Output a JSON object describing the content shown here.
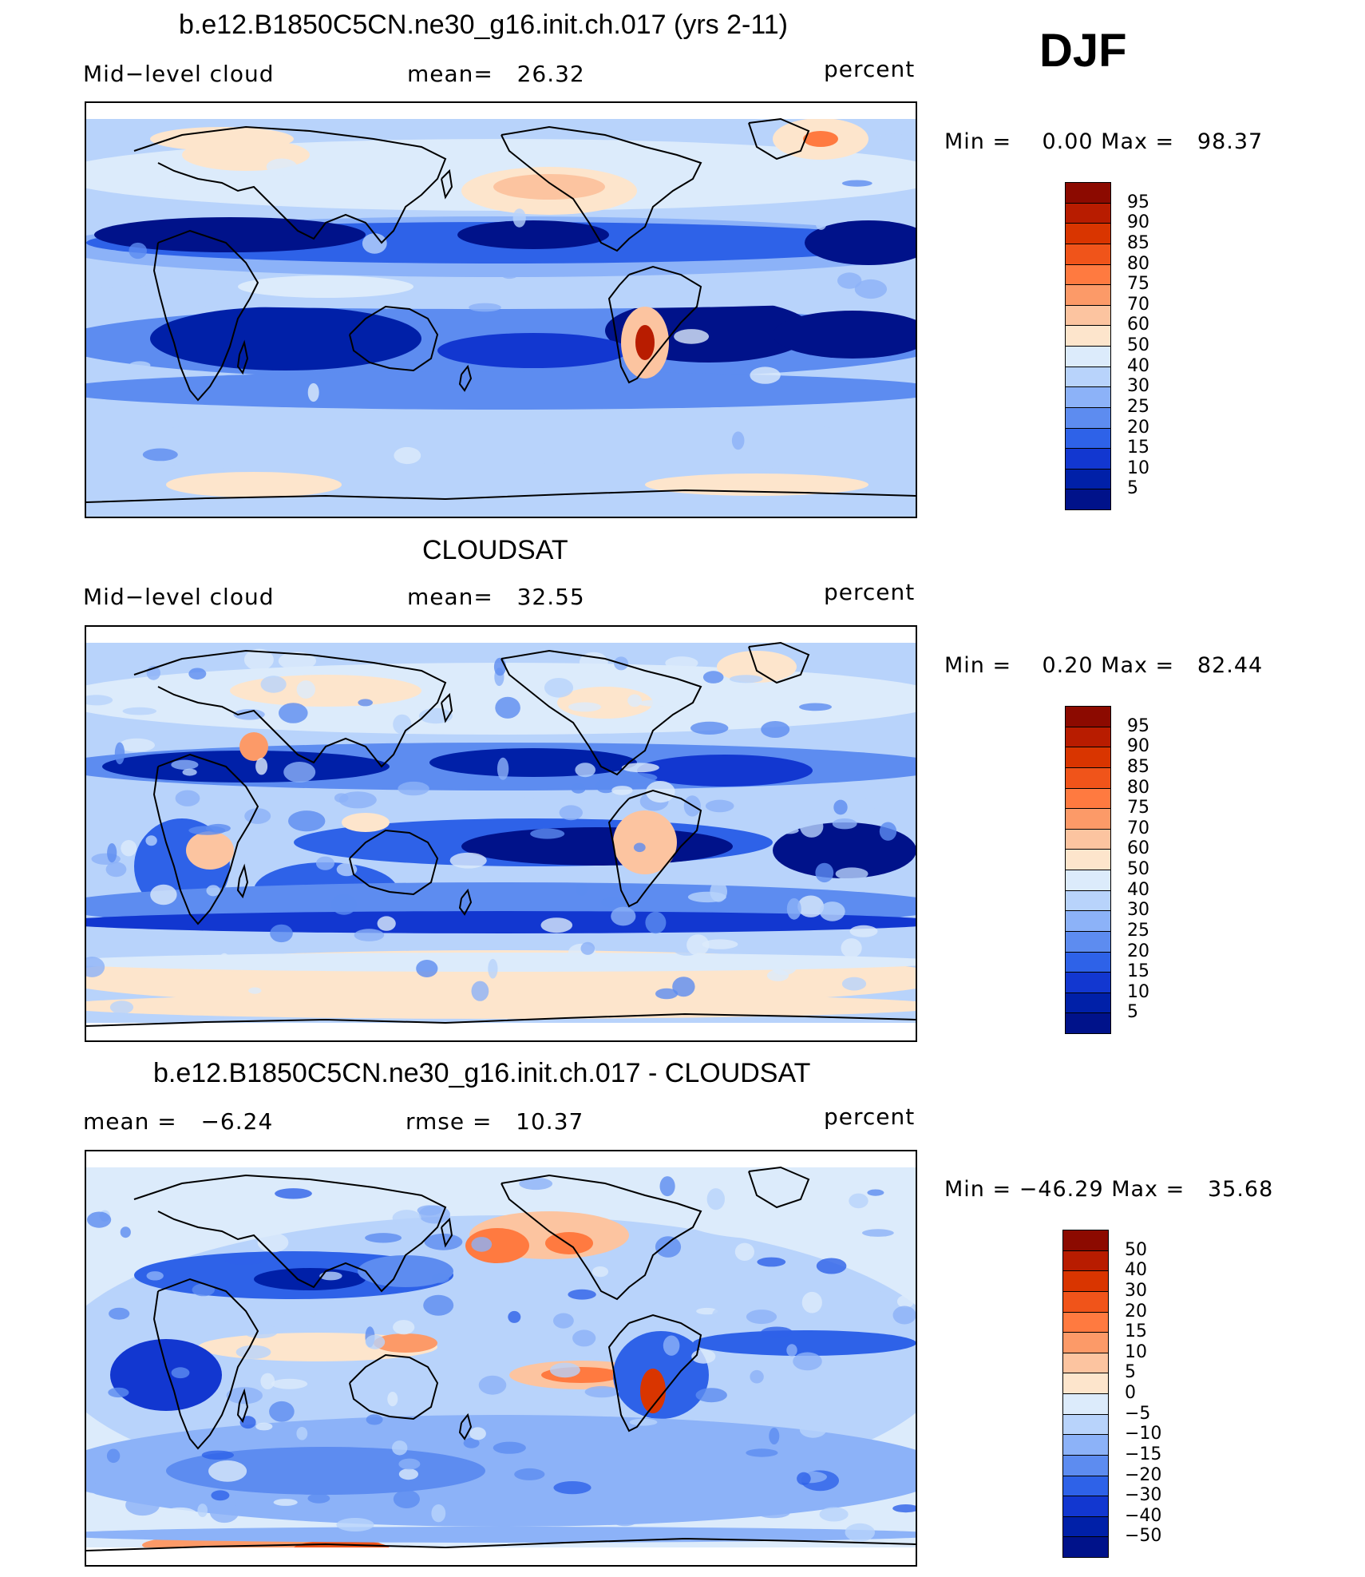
{
  "season": "DJF",
  "panels": [
    {
      "title": "b.e12.B1850C5CN.ne30_g16.init.ch.017 (yrs 2-11)",
      "left_label": "Mid−level cloud",
      "center_label": "mean=   26.32",
      "right_label": "percent",
      "minmax": "Min =    0.00 Max =   98.37",
      "colorbar_labels": [
        "95",
        "90",
        "85",
        "80",
        "75",
        "70",
        "60",
        "50",
        "40",
        "30",
        "25",
        "20",
        "15",
        "10",
        "5"
      ],
      "colorbar_colors": [
        "#8c0a00",
        "#b81c00",
        "#d93500",
        "#f0541a",
        "#ff7a40",
        "#fc9a68",
        "#fcc4a0",
        "#fde5cc",
        "#dcebfb",
        "#b8d3fb",
        "#8cb2f8",
        "#5d8cf0",
        "#2e62e8",
        "#1237d0",
        "#0020a8",
        "#00128a"
      ]
    },
    {
      "title": "CLOUDSAT",
      "left_label": "Mid−level cloud",
      "center_label": "mean=   32.55",
      "right_label": "percent",
      "minmax": "Min =    0.20 Max =   82.44",
      "colorbar_labels": [
        "95",
        "90",
        "85",
        "80",
        "75",
        "70",
        "60",
        "50",
        "40",
        "30",
        "25",
        "20",
        "15",
        "10",
        "5"
      ],
      "colorbar_colors": [
        "#8c0a00",
        "#b81c00",
        "#d93500",
        "#f0541a",
        "#ff7a40",
        "#fc9a68",
        "#fcc4a0",
        "#fde5cc",
        "#dcebfb",
        "#b8d3fb",
        "#8cb2f8",
        "#5d8cf0",
        "#2e62e8",
        "#1237d0",
        "#0020a8",
        "#00128a"
      ]
    },
    {
      "title": "b.e12.B1850C5CN.ne30_g16.init.ch.017 - CLOUDSAT",
      "left_label": "mean =   −6.24",
      "center_label": "rmse =   10.37",
      "right_label": "percent",
      "minmax": "Min = −46.29 Max =   35.68",
      "colorbar_labels": [
        "50",
        "40",
        "30",
        "20",
        "15",
        "10",
        "5",
        "0",
        "−5",
        "−10",
        "−15",
        "−20",
        "−30",
        "−40",
        "−50"
      ],
      "colorbar_colors": [
        "#8c0a00",
        "#b81c00",
        "#d93500",
        "#f0541a",
        "#ff7a40",
        "#fc9a68",
        "#fcc4a0",
        "#fde5cc",
        "#dcebfb",
        "#b8d3fb",
        "#8cb2f8",
        "#5d8cf0",
        "#2e62e8",
        "#1237d0",
        "#0020a8",
        "#00128a"
      ]
    }
  ],
  "chart_data": [
    {
      "type": "heatmap",
      "title": "b.e12.B1850C5CN.ne30_g16.init.ch.017 (yrs 2-11)",
      "variable": "Mid−level cloud",
      "units": "percent",
      "mean": 26.32,
      "min": 0.0,
      "max": 98.37,
      "contour_levels": [
        5,
        10,
        15,
        20,
        25,
        30,
        40,
        50,
        60,
        70,
        75,
        80,
        85,
        90,
        95
      ]
    },
    {
      "type": "heatmap",
      "title": "CLOUDSAT",
      "variable": "Mid−level cloud",
      "units": "percent",
      "mean": 32.55,
      "min": 0.2,
      "max": 82.44,
      "contour_levels": [
        5,
        10,
        15,
        20,
        25,
        30,
        40,
        50,
        60,
        70,
        75,
        80,
        85,
        90,
        95
      ]
    },
    {
      "type": "heatmap",
      "title": "b.e12.B1850C5CN.ne30_g16.init.ch.017 - CLOUDSAT",
      "units": "percent",
      "mean": -6.24,
      "rmse": 10.37,
      "min": -46.29,
      "max": 35.68,
      "contour_levels": [
        -50,
        -40,
        -30,
        -20,
        -15,
        -10,
        -5,
        0,
        5,
        10,
        15,
        20,
        30,
        40,
        50
      ]
    }
  ]
}
